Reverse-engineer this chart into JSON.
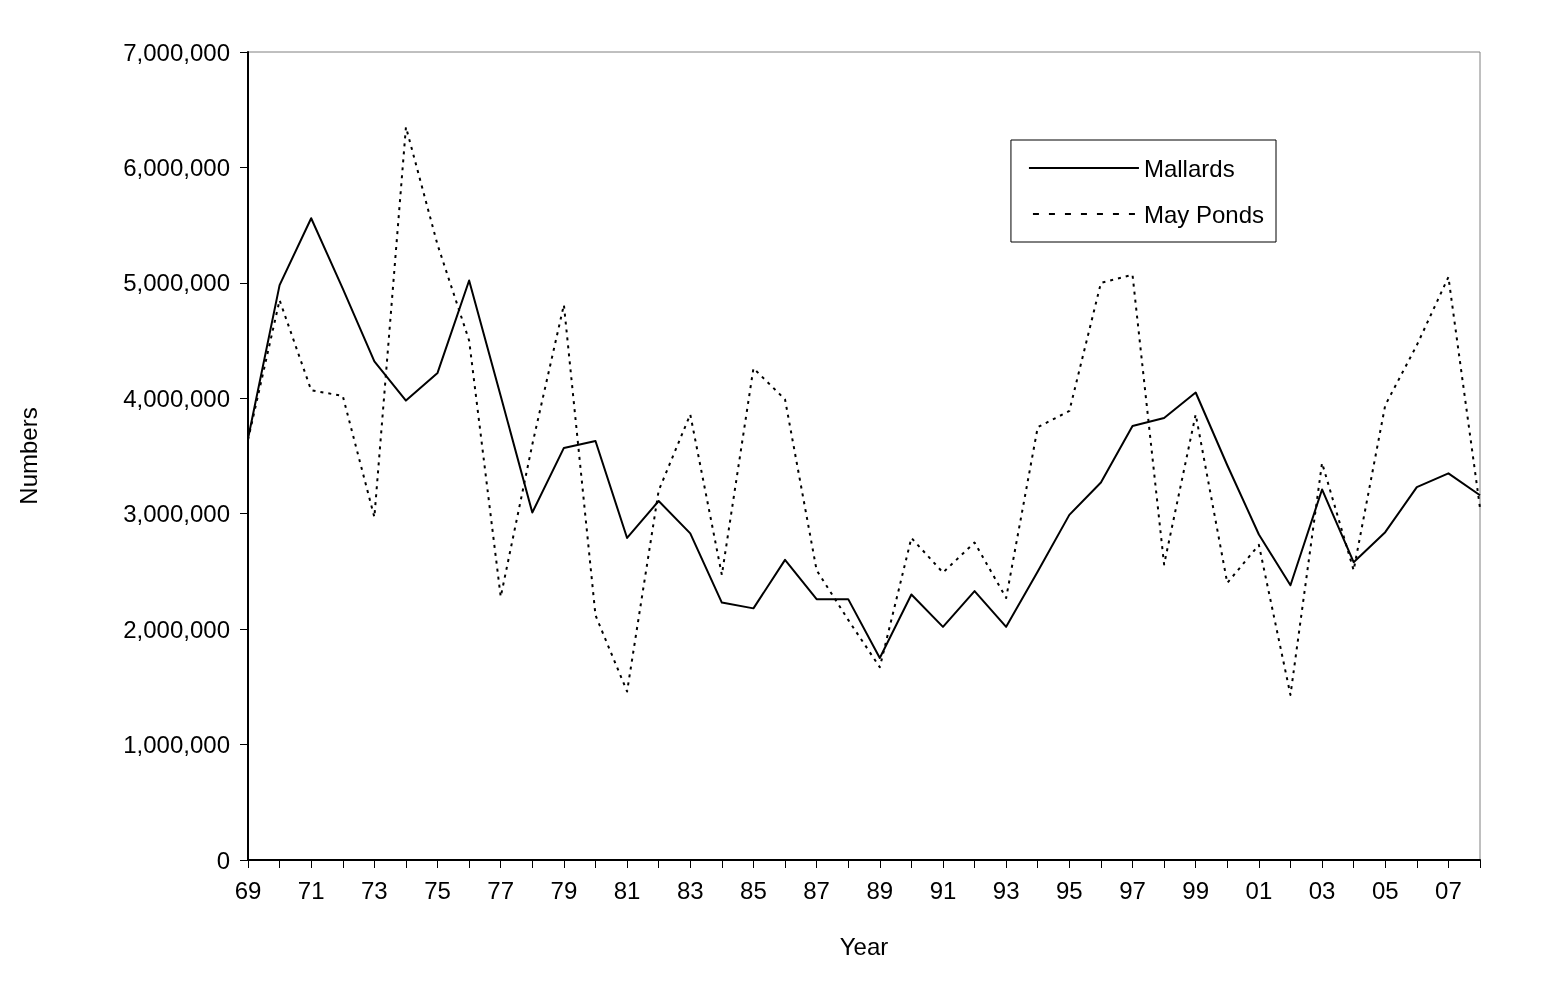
{
  "chart_data": {
    "type": "line",
    "xlabel": "Year",
    "ylabel": "Numbers",
    "categories": [
      "69",
      null,
      "71",
      null,
      "73",
      null,
      "75",
      null,
      "77",
      null,
      "79",
      null,
      "81",
      null,
      "83",
      null,
      "85",
      null,
      "87",
      null,
      "89",
      null,
      "91",
      null,
      "93",
      null,
      "95",
      null,
      "97",
      null,
      "99",
      null,
      "01",
      null,
      "03",
      null,
      "05",
      null,
      "07",
      null
    ],
    "series": [
      {
        "name": "Mallards",
        "color": "#000000",
        "line_style": "solid",
        "values": [
          3650000,
          4980000,
          5560000,
          4950000,
          4320000,
          3980000,
          4220000,
          5020000,
          4020000,
          3010000,
          3570000,
          3630000,
          2790000,
          3110000,
          2830000,
          2230000,
          2180000,
          2600000,
          2260000,
          2260000,
          1750000,
          2300000,
          2020000,
          2330000,
          2020000,
          2500000,
          2990000,
          3270000,
          3760000,
          3830000,
          4050000,
          3420000,
          2820000,
          2380000,
          3210000,
          2580000,
          2840000,
          3230000,
          3350000,
          3160000
        ]
      },
      {
        "name": "May Ponds",
        "color": "#000000",
        "line_style": "dotted",
        "values": [
          3640000,
          4850000,
          4070000,
          4020000,
          2970000,
          6350000,
          5330000,
          4500000,
          2280000,
          3600000,
          4810000,
          2120000,
          1460000,
          3200000,
          3860000,
          2470000,
          4260000,
          3990000,
          2510000,
          2080000,
          1670000,
          2790000,
          2490000,
          2750000,
          2270000,
          3750000,
          3890000,
          5000000,
          5070000,
          2560000,
          3860000,
          2400000,
          2730000,
          1430000,
          3440000,
          2510000,
          3940000,
          4460000,
          5050000,
          3050000
        ]
      }
    ],
    "ylim": [
      0,
      7000000
    ],
    "yticks": [
      {
        "value": 0,
        "label": "0"
      },
      {
        "value": 1000000,
        "label": "1,000,000"
      },
      {
        "value": 2000000,
        "label": "2,000,000"
      },
      {
        "value": 3000000,
        "label": "3,000,000"
      },
      {
        "value": 4000000,
        "label": "4,000,000"
      },
      {
        "value": 5000000,
        "label": "5,000,000"
      },
      {
        "value": 6000000,
        "label": "6,000,000"
      },
      {
        "value": 7000000,
        "label": "7,000,000"
      }
    ],
    "grid": false,
    "legend": "top right",
    "marker": "none"
  }
}
